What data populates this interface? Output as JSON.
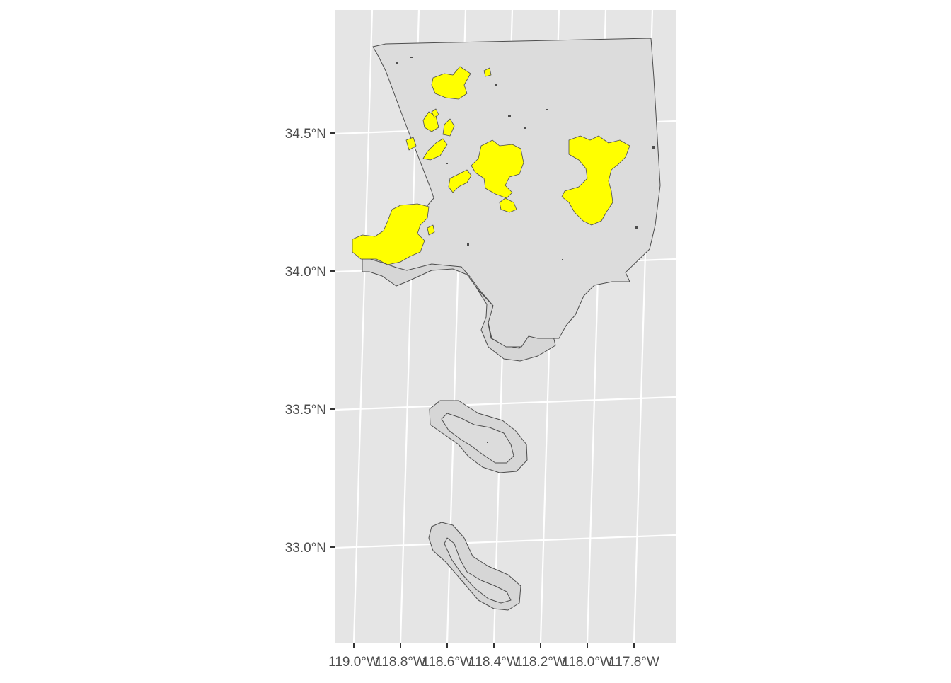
{
  "map": {
    "type": "choropleth-map",
    "projection": "transverse",
    "grid": true,
    "colors": {
      "panel": "#e5e5e5",
      "grid": "#ffffff",
      "county_fill": "#dcdcdc",
      "buffer_fill": "#d6d6d6",
      "outline": "#4d4d4d",
      "highlight": "#ffff00",
      "tick_text": "#4d4d4d"
    },
    "y_axis": {
      "ticks": [
        {
          "value": 34.5,
          "label": "34.5°N"
        },
        {
          "value": 34.0,
          "label": "34.0°N"
        },
        {
          "value": 33.5,
          "label": "33.5°N"
        },
        {
          "value": 33.0,
          "label": "33.0°N"
        }
      ]
    },
    "x_axis": {
      "ticks": [
        {
          "value": -119.0,
          "label": "119.0°W"
        },
        {
          "value": -118.8,
          "label": "118.8°W"
        },
        {
          "value": -118.6,
          "label": "118.6°W"
        },
        {
          "value": -118.4,
          "label": "118.4°W"
        },
        {
          "value": -118.2,
          "label": "118.2°W"
        },
        {
          "value": -118.0,
          "label": "118.0°W"
        },
        {
          "value": -117.8,
          "label": "117.8°W"
        }
      ]
    },
    "layers": [
      {
        "name": "county-boundary",
        "fill": "county_fill"
      },
      {
        "name": "coastal-buffer",
        "fill": "buffer_fill"
      },
      {
        "name": "highlighted-areas",
        "fill": "highlight"
      }
    ]
  }
}
